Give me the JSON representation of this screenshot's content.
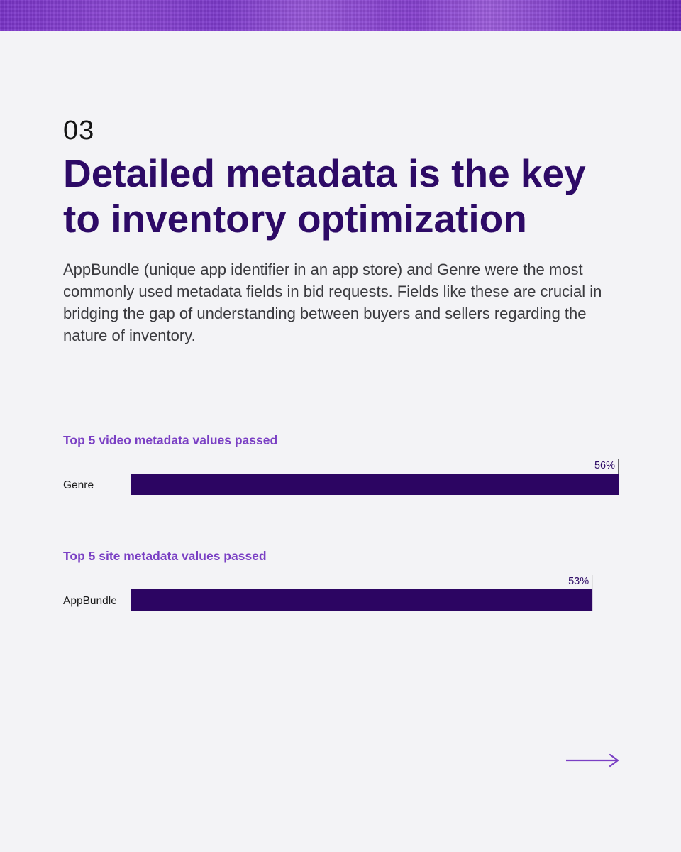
{
  "section": {
    "number": "03"
  },
  "headline": "Detailed metadata is the key to inventory optimization",
  "body": "AppBundle (unique app identifier in an app store) and Genre were the most commonly used metadata fields in bid requests. Fields like these are crucial in bridging the gap of understanding between buyers and sellers regarding the nature of inventory.",
  "colors": {
    "bar": "#2c0562",
    "accent": "#7a3fc4",
    "headline": "#2d0a66"
  },
  "chart_data": [
    {
      "type": "bar",
      "orientation": "horizontal",
      "title": "Top 5 video metadata values passed",
      "categories": [
        "Genre"
      ],
      "values": [
        56
      ],
      "value_labels": [
        "56%"
      ],
      "xlim": [
        0,
        56
      ]
    },
    {
      "type": "bar",
      "orientation": "horizontal",
      "title": "Top 5 site metadata values passed",
      "categories": [
        "AppBundle"
      ],
      "values": [
        53
      ],
      "value_labels": [
        "53%"
      ],
      "xlim": [
        0,
        56
      ]
    }
  ],
  "nav": {
    "next_icon": "arrow-right-icon"
  }
}
